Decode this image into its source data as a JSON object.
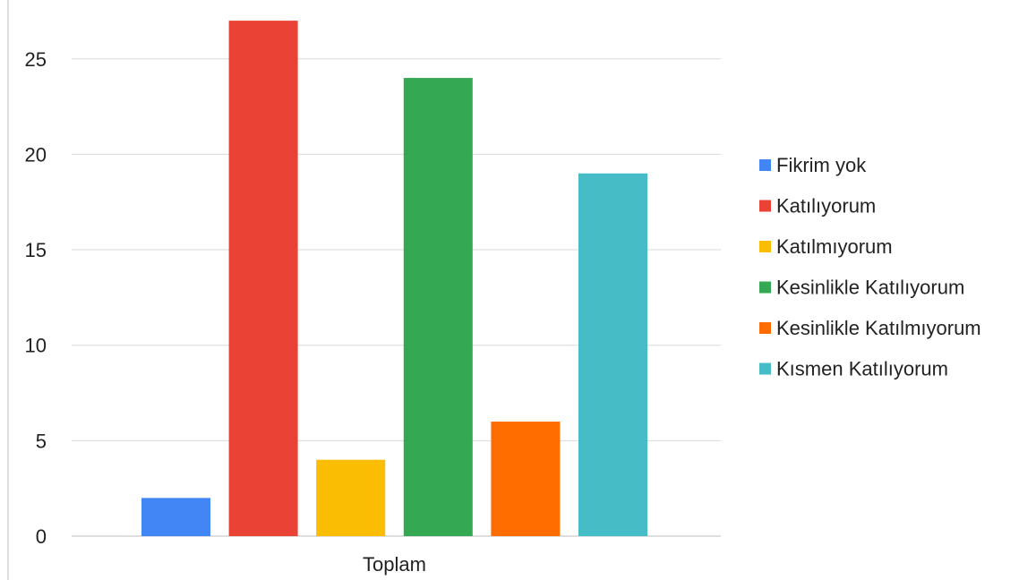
{
  "chart_data": {
    "type": "bar",
    "title": "",
    "xlabel": "",
    "ylabel": "",
    "categories": [
      "Toplam"
    ],
    "ylim": [
      0,
      28
    ],
    "yticks": [
      0,
      5,
      10,
      15,
      20,
      25
    ],
    "grid": true,
    "legend_position": "right",
    "series": [
      {
        "name": "Fikrim yok",
        "values": [
          2
        ],
        "color": "#4285F4"
      },
      {
        "name": "Katılıyorum",
        "values": [
          27
        ],
        "color": "#EA4335"
      },
      {
        "name": "Katılmıyorum",
        "values": [
          4
        ],
        "color": "#FBBC04"
      },
      {
        "name": "Kesinlikle Katılıyorum",
        "values": [
          24
        ],
        "color": "#34A853"
      },
      {
        "name": "Kesinlikle Katılmıyorum",
        "values": [
          6
        ],
        "color": "#FF6D01"
      },
      {
        "name": "Kısmen Katılıyorum",
        "values": [
          19
        ],
        "color": "#46BDC6"
      }
    ]
  }
}
